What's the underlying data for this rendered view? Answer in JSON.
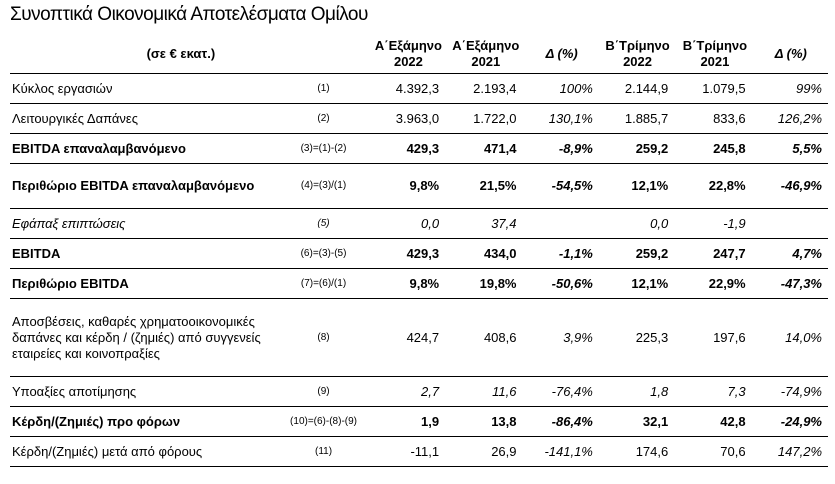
{
  "title": "Συνοπτικά Οικονομικά Αποτελέσματα Ομίλου",
  "header": {
    "unit": "(σε € εκατ.)",
    "h1_2022": [
      "Α΄Εξάμηνο",
      "2022"
    ],
    "h1_2021": [
      "Α΄Εξάμηνο",
      "2021"
    ],
    "d1": "Δ (%)",
    "q2_2022": [
      "Β΄Τρίμηνο",
      "2022"
    ],
    "q2_2021": [
      "Β΄Τρίμηνο",
      "2021"
    ],
    "d2": "Δ (%)"
  },
  "rows": [
    {
      "label": "Κύκλος εργασιών",
      "formula": "(1)",
      "v1": "4.392,3",
      "v2": "2.193,4",
      "d1": "100%",
      "v3": "2.144,9",
      "v4": "1.079,5",
      "d2": "99%"
    },
    {
      "label": "Λειτουργικές Δαπάνες",
      "formula": "(2)",
      "v1": "3.963,0",
      "v2": "1.722,0",
      "d1": "130,1%",
      "v3": "1.885,7",
      "v4": "833,6",
      "d2": "126,2%"
    },
    {
      "label": "EBITDA επαναλαμβανόμενο",
      "formula": "(3)=(1)-(2)",
      "v1": "429,3",
      "v2": "471,4",
      "d1": "-8,9%",
      "v3": "259,2",
      "v4": "245,8",
      "d2": "5,5%"
    },
    {
      "label": "Περιθώριο EBITDA επαναλαμβανόμενο",
      "formula": "(4)=(3)/(1)",
      "v1": "9,8%",
      "v2": "21,5%",
      "d1": "-54,5%",
      "v3": "12,1%",
      "v4": "22,8%",
      "d2": "-46,9%"
    },
    {
      "label": "Εφάπαξ επιπτώσεις",
      "formula": "(5)",
      "v1": "0,0",
      "v2": "37,4",
      "d1": "",
      "v3": "0,0",
      "v4": "-1,9",
      "d2": ""
    },
    {
      "label": "EBITDA",
      "formula": "(6)=(3)-(5)",
      "v1": "429,3",
      "v2": "434,0",
      "d1": "-1,1%",
      "v3": "259,2",
      "v4": "247,7",
      "d2": "4,7%"
    },
    {
      "label": "Περιθώριο EBITDA",
      "formula": "(7)=(6)/(1)",
      "v1": "9,8%",
      "v2": "19,8%",
      "d1": "-50,6%",
      "v3": "12,1%",
      "v4": "22,9%",
      "d2": "-47,3%"
    },
    {
      "label": "Αποσβέσεις, καθαρές χρηματοοικονομικές δαπάνες και κέρδη / (ζημιές) από συγγενείς εταιρείες και κοινοπραξίες",
      "formula": "(8)",
      "v1": "424,7",
      "v2": "408,6",
      "d1": "3,9%",
      "v3": "225,3",
      "v4": "197,6",
      "d2": "14,0%"
    },
    {
      "label": "Υποαξίες αποτίμησης",
      "formula": "(9)",
      "v1": "2,7",
      "v2": "11,6",
      "d1": "-76,4%",
      "v3": "1,8",
      "v4": "7,3",
      "d2": "-74,9%"
    },
    {
      "label": "Κέρδη/(Ζημιές) προ φόρων",
      "formula": "(10)=(6)-(8)-(9)",
      "v1": "1,9",
      "v2": "13,8",
      "d1": "-86,4%",
      "v3": "32,1",
      "v4": "42,8",
      "d2": "-24,9%"
    },
    {
      "label": "Κέρδη/(Ζημιές) μετά από φόρους",
      "formula": "(11)",
      "v1": "-11,1",
      "v2": "26,9",
      "d1": "-141,1%",
      "v3": "174,6",
      "v4": "70,6",
      "d2": "147,2%"
    }
  ]
}
